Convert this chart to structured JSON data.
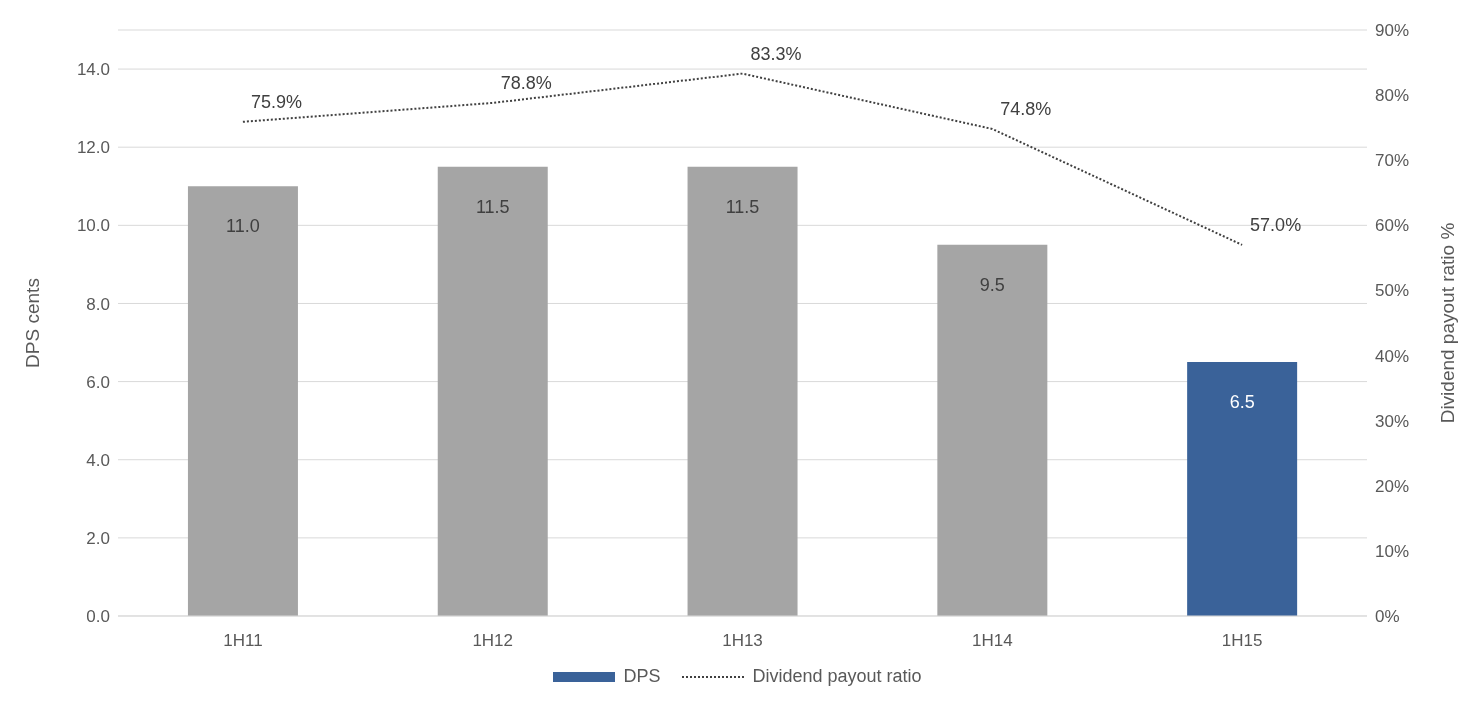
{
  "chart_data": {
    "type": "bar",
    "categories": [
      "1H11",
      "1H12",
      "1H13",
      "1H14",
      "1H15"
    ],
    "ylabel": "DPS cents",
    "y2label": "Dividend payout ratio %",
    "ylim": [
      0,
      15
    ],
    "yticks": [
      {
        "value": 0,
        "label": "0.0"
      },
      {
        "value": 2,
        "label": "2.0"
      },
      {
        "value": 4,
        "label": "4.0"
      },
      {
        "value": 6,
        "label": "6.0"
      },
      {
        "value": 8,
        "label": "8.0"
      },
      {
        "value": 10,
        "label": "10.0"
      },
      {
        "value": 12,
        "label": "12.0"
      },
      {
        "value": 14,
        "label": "14.0"
      }
    ],
    "y2lim": [
      0,
      90
    ],
    "y2ticks": [
      {
        "value": 0,
        "label": "0%"
      },
      {
        "value": 10,
        "label": "10%"
      },
      {
        "value": 20,
        "label": "20%"
      },
      {
        "value": 30,
        "label": "30%"
      },
      {
        "value": 40,
        "label": "40%"
      },
      {
        "value": 50,
        "label": "50%"
      },
      {
        "value": 60,
        "label": "60%"
      },
      {
        "value": 70,
        "label": "70%"
      },
      {
        "value": 80,
        "label": "80%"
      },
      {
        "value": 90,
        "label": "90%"
      }
    ],
    "grid": "y",
    "legend": "bottom",
    "series": [
      {
        "name": "DPS",
        "color": "#3a6299",
        "colors": [
          "#a5a5a5",
          "#a5a5a5",
          "#a5a5a5",
          "#a5a5a5",
          "#3a6299"
        ],
        "values": [
          11.0,
          11.5,
          11.5,
          9.5,
          6.5
        ],
        "value_labels": [
          "11.0",
          "11.5",
          "11.5",
          "9.5",
          "6.5"
        ]
      },
      {
        "name": "Dividend payout ratio",
        "type": "line",
        "axis": "y2",
        "color": "#404040",
        "line_style": "dotted",
        "values": [
          75.9,
          78.8,
          83.3,
          74.8,
          57.0
        ],
        "value_labels": [
          "75.9%",
          "78.8%",
          "83.3%",
          "74.8%",
          "57.0%"
        ]
      }
    ]
  }
}
